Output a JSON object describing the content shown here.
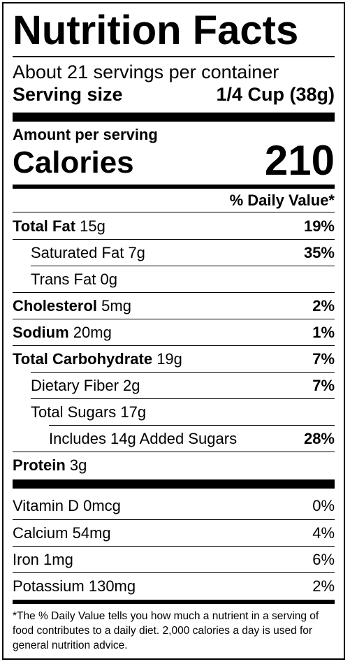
{
  "title": "Nutrition Facts",
  "servings_per_container": "About 21 servings per container",
  "serving_size": {
    "label": "Serving size",
    "value": "1/4 Cup (38g)"
  },
  "amount_per_serving": "Amount per serving",
  "calories": {
    "label": "Calories",
    "value": "210"
  },
  "daily_value_header": "% Daily Value*",
  "nutrients": [
    {
      "name": "Total Fat",
      "amount": "15g",
      "dv": "19%"
    },
    {
      "name": "Saturated Fat",
      "amount": "7g",
      "dv": "35%"
    },
    {
      "name": "Trans Fat",
      "amount": "0g",
      "dv": ""
    },
    {
      "name": "Cholesterol",
      "amount": "5mg",
      "dv": "2%"
    },
    {
      "name": "Sodium",
      "amount": "20mg",
      "dv": "1%"
    },
    {
      "name": "Total Carbohydrate",
      "amount": "19g",
      "dv": "7%"
    },
    {
      "name": "Dietary Fiber",
      "amount": "2g",
      "dv": "7%"
    },
    {
      "name": "Total Sugars",
      "amount": "17g",
      "dv": ""
    },
    {
      "name": "Includes 14g Added Sugars",
      "amount": "",
      "dv": "28%"
    },
    {
      "name": "Protein",
      "amount": "3g",
      "dv": ""
    }
  ],
  "vitamins": [
    {
      "name": "Vitamin D",
      "amount": "0mcg",
      "dv": "0%"
    },
    {
      "name": "Calcium",
      "amount": "54mg",
      "dv": "4%"
    },
    {
      "name": "Iron",
      "amount": "1mg",
      "dv": "6%"
    },
    {
      "name": "Potassium",
      "amount": "130mg",
      "dv": "2%"
    }
  ],
  "footnote": "*The % Daily Value tells you how much a nutrient in a serving of food contributes to a daily diet. 2,000 calories a day is used for general nutrition advice."
}
